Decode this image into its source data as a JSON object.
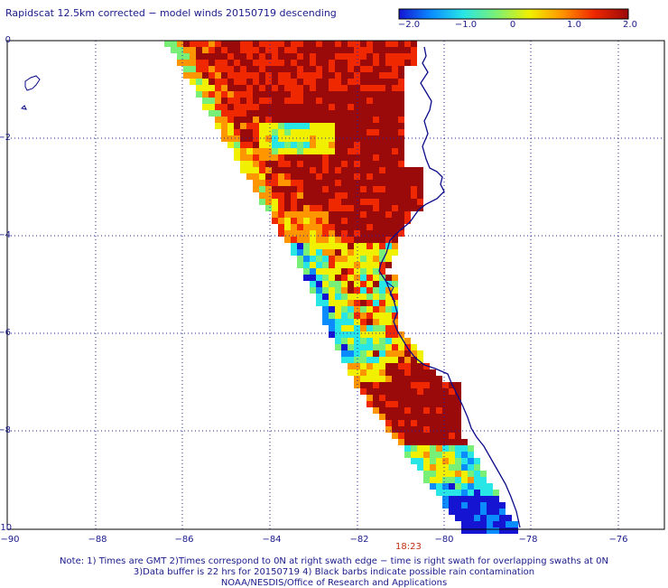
{
  "title": "Rapidscat 12.5km corrected − model winds 20150719 descending",
  "colorbar": {
    "tick_labels": [
      "−2.0",
      "−1.0",
      "0",
      "1.0",
      "2.0"
    ],
    "colors": [
      "#1414d2",
      "#0a8cff",
      "#28e6e6",
      "#78f078",
      "#f0f000",
      "#ff9600",
      "#f02800",
      "#9b0a0a"
    ]
  },
  "axes": {
    "y_labels": [
      "0",
      "−2",
      "−4",
      "−6",
      "−8",
      "−10"
    ],
    "x_labels": [
      "−90",
      "−88",
      "−86",
      "−84",
      "−82",
      "−80",
      "−78",
      "−76"
    ]
  },
  "time_label": "18:23",
  "notes": [
    "Note: 1) Times are GMT 2)Times correspond to 0N at right swath edge − time is right swath for overlapping swaths at 0N",
    "3)Data buffer is 22 hrs for 20150719 4) Black barbs indicate possible rain contamination",
    "NOAA/NESDIS/Office of Research and Applications"
  ],
  "map_colors": {
    "grid": "#2020a0",
    "coast": "#0a0a8a",
    "frame": "#000000"
  }
}
